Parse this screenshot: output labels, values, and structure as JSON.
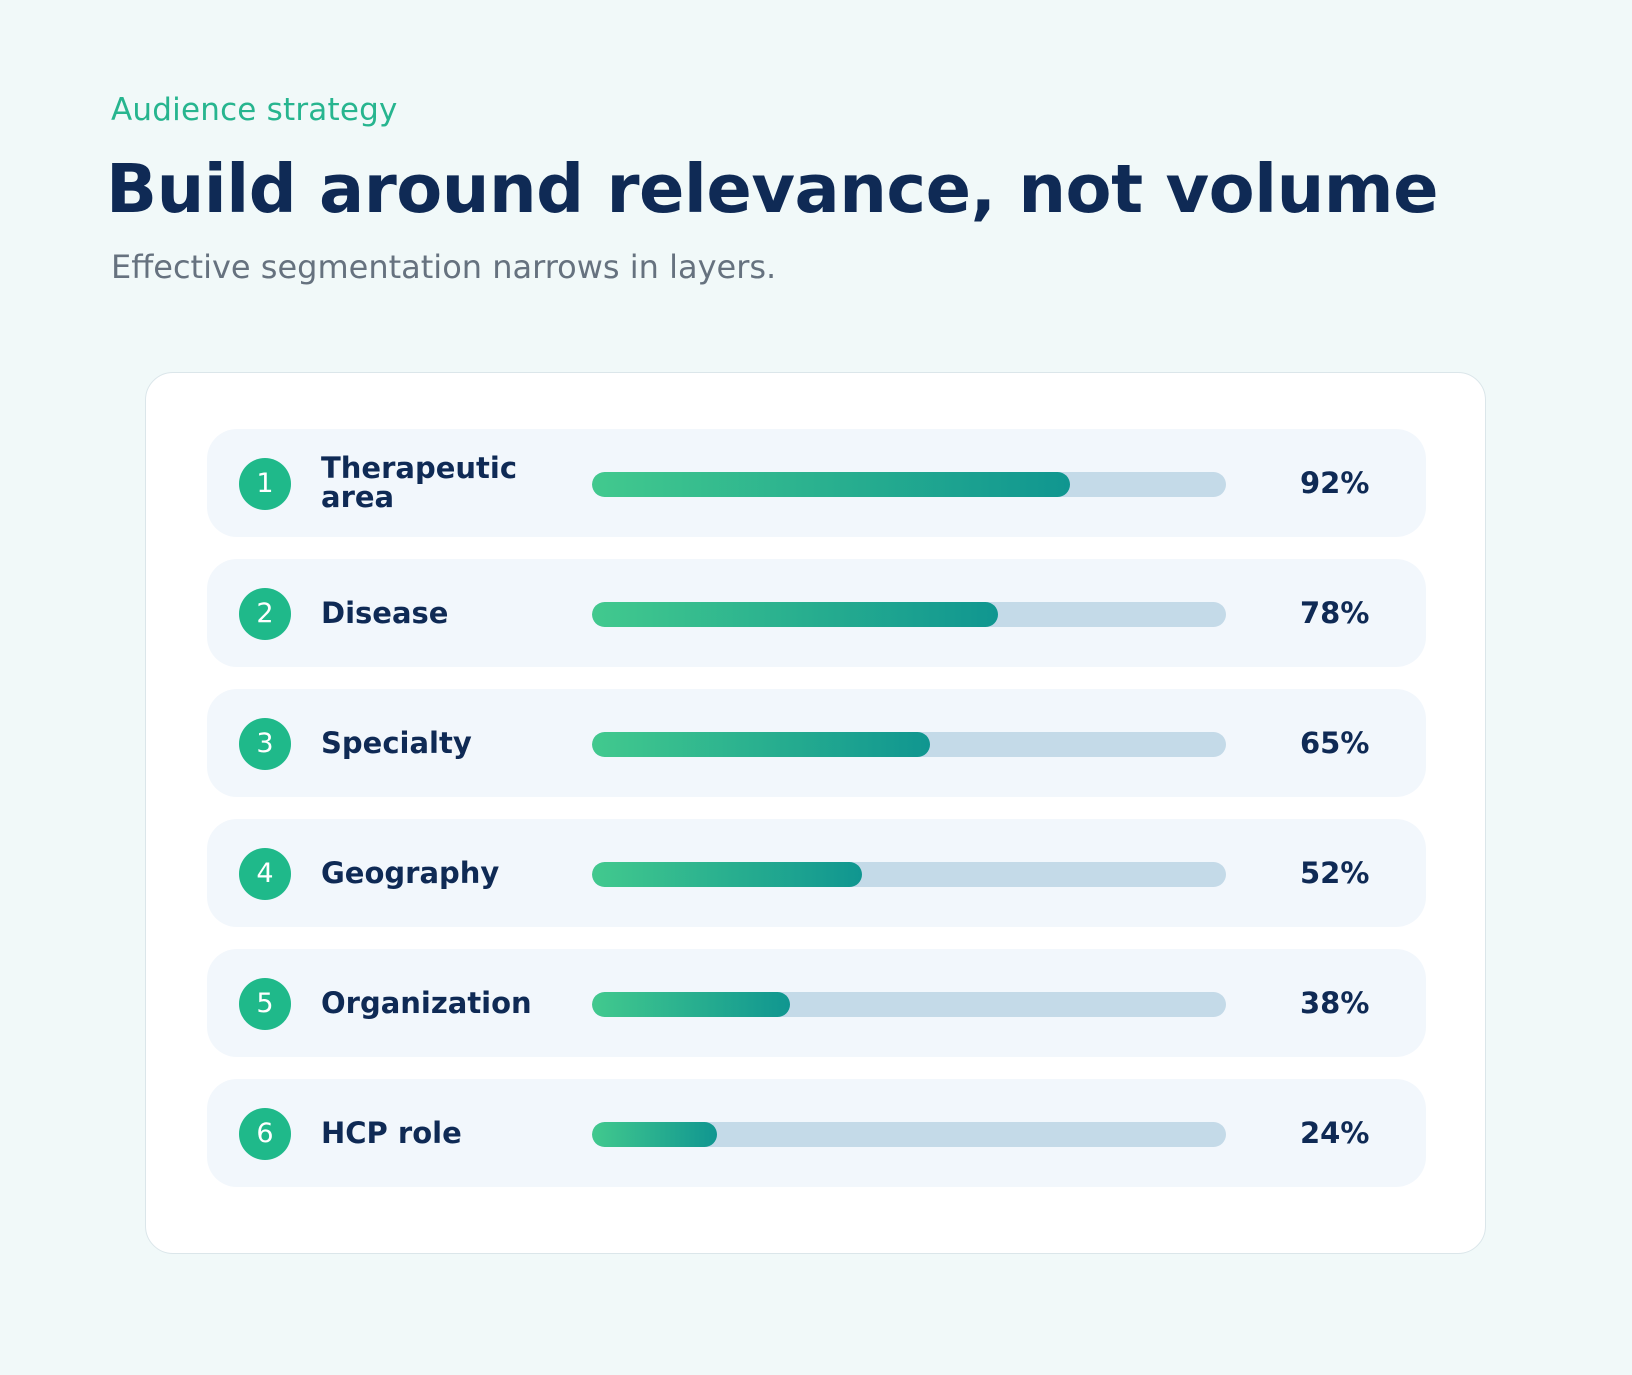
{
  "header": {
    "eyebrow": "Audience strategy",
    "title": "Build around relevance, not volume",
    "subtitle": "Effective segmentation narrows in layers."
  },
  "colors": {
    "accent": "#1fb98a",
    "title": "#0f2a55",
    "bar_start": "#42c98e",
    "bar_end": "#109690",
    "track": "#c4dae8"
  },
  "chart_data": {
    "type": "bar",
    "orientation": "horizontal",
    "categories": [
      "Therapeutic area",
      "Disease",
      "Specialty",
      "Geography",
      "Organization",
      "HCP role"
    ],
    "values": [
      92,
      78,
      65,
      52,
      38,
      24
    ],
    "unit": "%",
    "xlim": [
      0,
      100
    ]
  },
  "rows": [
    {
      "index": "1",
      "label": "Therapeutic area",
      "value": 92,
      "value_label": "92%"
    },
    {
      "index": "2",
      "label": "Disease",
      "value": 78,
      "value_label": "78%"
    },
    {
      "index": "3",
      "label": "Specialty",
      "value": 65,
      "value_label": "65%"
    },
    {
      "index": "4",
      "label": "Geography",
      "value": 52,
      "value_label": "52%"
    },
    {
      "index": "5",
      "label": "Organization",
      "value": 38,
      "value_label": "38%"
    },
    {
      "index": "6",
      "label": "HCP role",
      "value": 24,
      "value_label": "24%"
    }
  ]
}
